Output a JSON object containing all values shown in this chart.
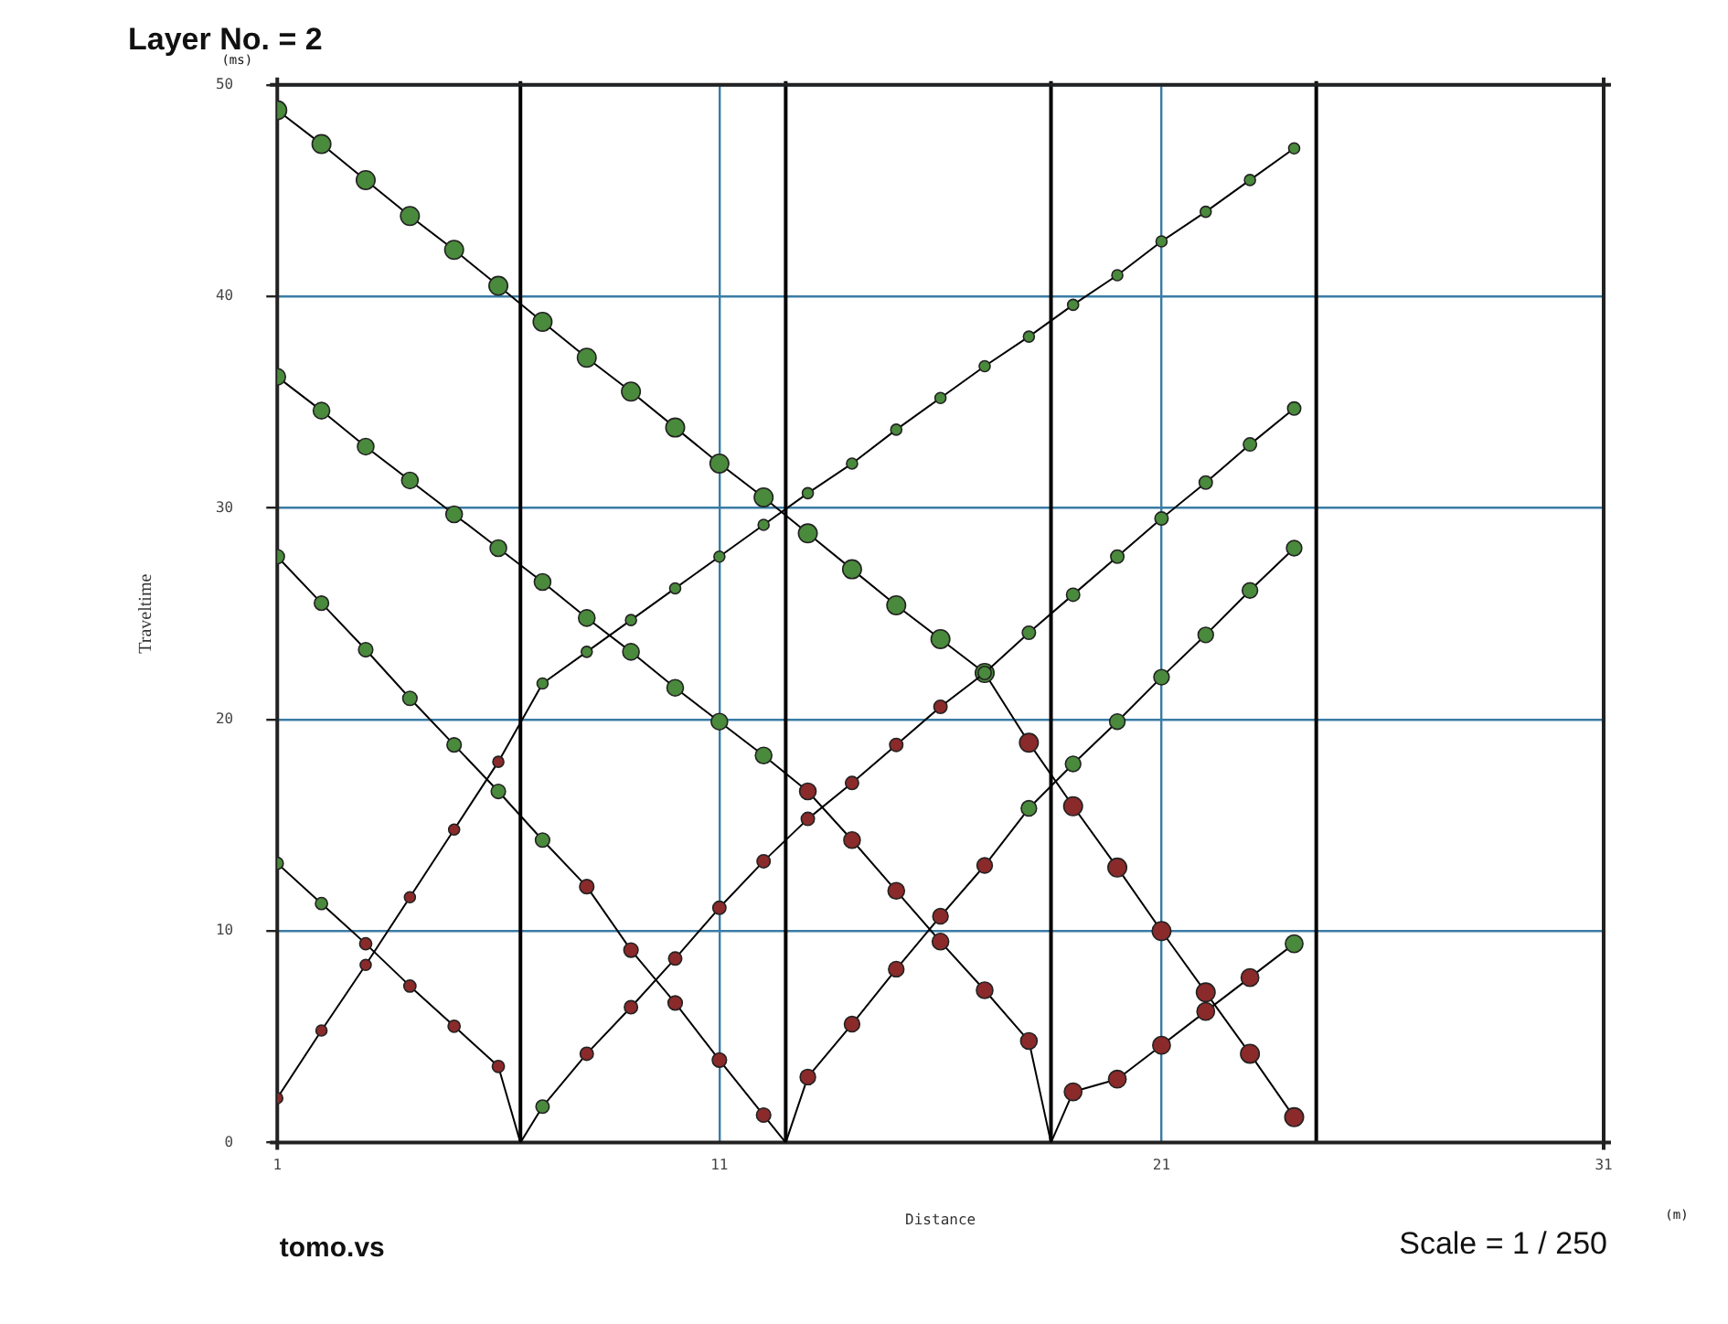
{
  "chart_data": {
    "type": "line",
    "title": "Layer No. = 2",
    "xlabel": "Distance",
    "ylabel": "Traveltime",
    "annotations": [
      "(ms)",
      "(m)",
      "tomo.vs",
      "Scale = 1 / 250"
    ],
    "xlim": [
      1,
      31
    ],
    "xticks": [
      1,
      11,
      21,
      31
    ],
    "ylim": [
      0,
      50
    ],
    "yticks": [
      0,
      10,
      20,
      30,
      40,
      50
    ],
    "grid": true,
    "legend": false,
    "marker": "circle",
    "line_style": "solid",
    "ref_lines": [
      {
        "axis": "x",
        "value": 6.5,
        "color": "#000000"
      },
      {
        "axis": "x",
        "value": 12.5,
        "color": "#000000"
      },
      {
        "axis": "x",
        "value": 18.5,
        "color": "#000000"
      },
      {
        "axis": "x",
        "value": 24.5,
        "color": "#000000"
      }
    ],
    "series": [
      {
        "color": "#000000",
        "x": [
          1,
          2,
          3,
          4,
          5,
          6,
          7,
          8,
          9,
          10,
          11,
          12,
          13,
          14,
          15,
          16,
          17,
          18,
          19,
          20,
          21,
          22,
          23,
          24
        ],
        "values": [
          2.1,
          5.3,
          8.4,
          11.6,
          14.8,
          18.0,
          21.7,
          23.2,
          24.7,
          26.2,
          27.7,
          29.2,
          30.7,
          32.1,
          33.7,
          35.2,
          36.7,
          38.1,
          39.6,
          41.0,
          42.6,
          44.0,
          45.5,
          47.0
        ],
        "colors": [
          "#8b2a2a",
          "#8b2a2a",
          "#8b2a2a",
          "#8b2a2a",
          "#8b2a2a",
          "#8b2a2a",
          "#4a8a3c",
          "#4a8a3c",
          "#4a8a3c",
          "#4a8a3c",
          "#4a8a3c",
          "#4a8a3c",
          "#4a8a3c",
          "#4a8a3c",
          "#4a8a3c",
          "#4a8a3c",
          "#4a8a3c",
          "#4a8a3c",
          "#4a8a3c",
          "#4a8a3c",
          "#4a8a3c",
          "#4a8a3c",
          "#4a8a3c",
          "#4a8a3c"
        ]
      },
      {
        "color": "#000000",
        "x": [
          1,
          2,
          3,
          4,
          5,
          6,
          6.5
        ],
        "values": [
          13.2,
          11.3,
          9.4,
          7.4,
          5.5,
          3.6,
          0
        ],
        "colors": [
          "#4a8a3c",
          "#4a8a3c",
          "#8b2a2a",
          "#8b2a2a",
          "#8b2a2a",
          "#8b2a2a",
          null
        ]
      },
      {
        "color": "#000000",
        "x": [
          6.5,
          7,
          8,
          9,
          10,
          11,
          12,
          13,
          14,
          15,
          16,
          17,
          18,
          19,
          20,
          21,
          22,
          23,
          24
        ],
        "values": [
          0,
          1.7,
          4.2,
          6.4,
          8.7,
          11.1,
          13.3,
          15.3,
          17.0,
          18.8,
          20.6,
          22.2,
          24.1,
          25.9,
          27.7,
          29.5,
          31.2,
          33.0,
          34.7
        ],
        "colors": [
          null,
          "#4a8a3c",
          "#8b2a2a",
          "#8b2a2a",
          "#8b2a2a",
          "#8b2a2a",
          "#8b2a2a",
          "#8b2a2a",
          "#8b2a2a",
          "#8b2a2a",
          "#8b2a2a",
          "#4a8a3c",
          "#4a8a3c",
          "#4a8a3c",
          "#4a8a3c",
          "#4a8a3c",
          "#4a8a3c",
          "#4a8a3c",
          "#4a8a3c"
        ]
      },
      {
        "color": "#000000",
        "x": [
          1,
          2,
          3,
          4,
          5,
          6,
          7,
          8,
          9,
          10,
          11,
          12,
          12.5
        ],
        "values": [
          27.7,
          25.5,
          23.3,
          21.0,
          18.8,
          16.6,
          14.3,
          12.1,
          9.1,
          6.6,
          3.9,
          1.3,
          0
        ],
        "colors": [
          "#4a8a3c",
          "#4a8a3c",
          "#4a8a3c",
          "#4a8a3c",
          "#4a8a3c",
          "#4a8a3c",
          "#4a8a3c",
          "#8b2a2a",
          "#8b2a2a",
          "#8b2a2a",
          "#8b2a2a",
          "#8b2a2a",
          null
        ]
      },
      {
        "color": "#000000",
        "x": [
          12.5,
          13,
          14,
          15,
          16,
          17,
          18,
          19,
          20,
          21,
          22,
          23,
          24
        ],
        "values": [
          0,
          3.1,
          5.6,
          8.2,
          10.7,
          13.1,
          15.8,
          17.9,
          19.9,
          22.0,
          24.0,
          26.1,
          28.1
        ],
        "colors": [
          null,
          "#8b2a2a",
          "#8b2a2a",
          "#8b2a2a",
          "#8b2a2a",
          "#8b2a2a",
          "#4a8a3c",
          "#4a8a3c",
          "#4a8a3c",
          "#4a8a3c",
          "#4a8a3c",
          "#4a8a3c",
          "#4a8a3c"
        ]
      },
      {
        "color": "#000000",
        "x": [
          1,
          2,
          3,
          4,
          5,
          6,
          7,
          8,
          9,
          10,
          11,
          12,
          13,
          14,
          15,
          16,
          17,
          18,
          18.5
        ],
        "values": [
          36.2,
          34.6,
          32.9,
          31.3,
          29.7,
          28.1,
          26.5,
          24.8,
          23.2,
          21.5,
          19.9,
          18.3,
          16.6,
          14.3,
          11.9,
          9.5,
          7.2,
          4.8,
          0
        ],
        "colors": [
          "#4a8a3c",
          "#4a8a3c",
          "#4a8a3c",
          "#4a8a3c",
          "#4a8a3c",
          "#4a8a3c",
          "#4a8a3c",
          "#4a8a3c",
          "#4a8a3c",
          "#4a8a3c",
          "#4a8a3c",
          "#4a8a3c",
          "#8b2a2a",
          "#8b2a2a",
          "#8b2a2a",
          "#8b2a2a",
          "#8b2a2a",
          "#8b2a2a",
          null
        ]
      },
      {
        "color": "#000000",
        "x": [
          18.5,
          19,
          20,
          21,
          22,
          23,
          24
        ],
        "values": [
          0,
          2.4,
          3.0,
          4.6,
          6.2,
          7.8,
          9.4
        ],
        "colors": [
          null,
          "#8b2a2a",
          "#8b2a2a",
          "#8b2a2a",
          "#8b2a2a",
          "#8b2a2a",
          "#4a8a3c"
        ]
      },
      {
        "color": "#000000",
        "x": [
          1,
          2,
          3,
          4,
          5,
          6,
          7,
          8,
          9,
          10,
          11,
          12,
          13,
          14,
          15,
          16,
          17,
          18,
          19,
          20,
          21,
          22,
          23,
          24
        ],
        "values": [
          48.8,
          47.2,
          45.5,
          43.8,
          42.2,
          40.5,
          38.8,
          37.1,
          35.5,
          33.8,
          32.1,
          30.5,
          28.8,
          27.1,
          25.4,
          23.8,
          22.2,
          18.9,
          15.9,
          13.0,
          10.0,
          7.1,
          4.2,
          1.2
        ],
        "colors": [
          "#4a8a3c",
          "#4a8a3c",
          "#4a8a3c",
          "#4a8a3c",
          "#4a8a3c",
          "#4a8a3c",
          "#4a8a3c",
          "#4a8a3c",
          "#4a8a3c",
          "#4a8a3c",
          "#4a8a3c",
          "#4a8a3c",
          "#4a8a3c",
          "#4a8a3c",
          "#4a8a3c",
          "#4a8a3c",
          "#4a8a3c",
          "#8b2a2a",
          "#8b2a2a",
          "#8b2a2a",
          "#8b2a2a",
          "#8b2a2a",
          "#8b2a2a",
          "#8b2a2a"
        ]
      }
    ]
  }
}
